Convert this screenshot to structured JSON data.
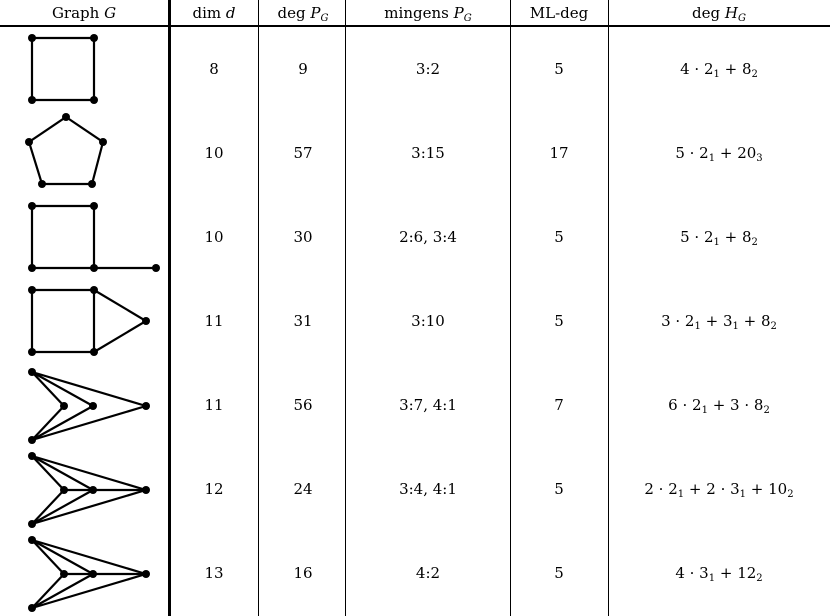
{
  "header": {
    "graph": "Graph ",
    "graph_var": "G",
    "dim": "dim ",
    "dim_var": "d",
    "deg": "deg ",
    "deg_var": "P",
    "deg_sub": "G",
    "mingens": "mingens ",
    "mingens_var": "P",
    "mingens_sub": "G",
    "mldeg": "ML-deg",
    "degh": "deg ",
    "degh_var": "H",
    "degh_sub": "G"
  },
  "rows": [
    {
      "dim": "8",
      "deg": "9",
      "mingens": "3:2",
      "ml": "5",
      "h": [
        [
          "4 · 2",
          "1"
        ],
        [
          " + 8",
          "2"
        ]
      ]
    },
    {
      "dim": "10",
      "deg": "57",
      "mingens": "3:15",
      "ml": "17",
      "h": [
        [
          "5 · 2",
          "1"
        ],
        [
          " + 20",
          "3"
        ]
      ]
    },
    {
      "dim": "10",
      "deg": "30",
      "mingens": "2:6, 3:4",
      "ml": "5",
      "h": [
        [
          "5 · 2",
          "1"
        ],
        [
          " + 8",
          "2"
        ]
      ]
    },
    {
      "dim": "11",
      "deg": "31",
      "mingens": "3:10",
      "ml": "5",
      "h": [
        [
          "3 · 2",
          "1"
        ],
        [
          " + 3",
          "1"
        ],
        [
          " + 8",
          "2"
        ]
      ]
    },
    {
      "dim": "11",
      "deg": "56",
      "mingens": "3:7, 4:1",
      "ml": "7",
      "h": [
        [
          "6 · 2",
          "1"
        ],
        [
          " + 3 · 8",
          "2"
        ]
      ]
    },
    {
      "dim": "12",
      "deg": "24",
      "mingens": "3:4, 4:1",
      "ml": "5",
      "h": [
        [
          "2 · 2",
          "1"
        ],
        [
          " + 2 · 3",
          "1"
        ],
        [
          " + 10",
          "2"
        ]
      ]
    },
    {
      "dim": "13",
      "deg": "16",
      "mingens": "4:2",
      "ml": "5",
      "h": [
        [
          "4 · 3",
          "1"
        ],
        [
          " + 12",
          "2"
        ]
      ]
    }
  ]
}
